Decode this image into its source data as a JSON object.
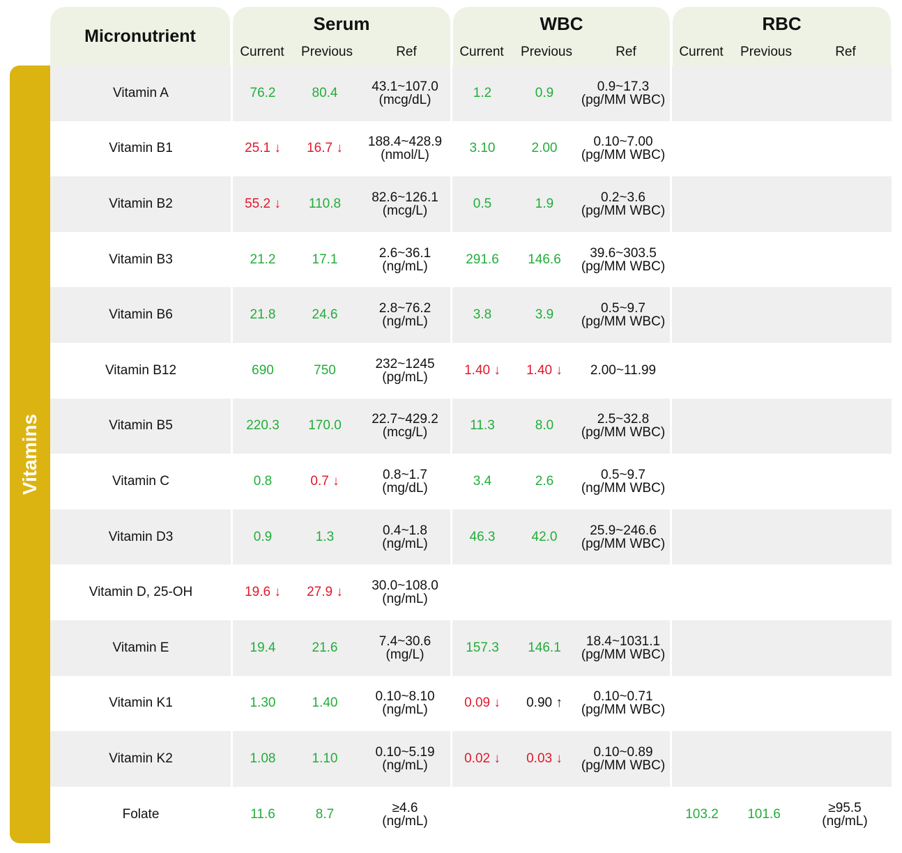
{
  "header": {
    "micronutrient": "Micronutrient",
    "groups": [
      "Serum",
      "WBC",
      "RBC"
    ],
    "sub": {
      "current": "Current",
      "previous": "Previous",
      "ref": "Ref"
    }
  },
  "category": "Vitamins",
  "colors": {
    "band": "#dbb412",
    "good": "#22ad3a",
    "bad": "#e0192b",
    "shade": "#efefef",
    "header_bg": "#eef2e4"
  },
  "rows": [
    {
      "name": "Vitamin A",
      "serum": {
        "current": {
          "v": "76.2",
          "s": "good"
        },
        "previous": {
          "v": "80.4",
          "s": "good"
        },
        "ref": [
          "43.1~107.0",
          "(mcg/dL)"
        ]
      },
      "wbc": {
        "current": {
          "v": "1.2",
          "s": "good"
        },
        "previous": {
          "v": "0.9",
          "s": "good"
        },
        "ref": [
          "0.9~17.3",
          "(pg/MM WBC)"
        ]
      }
    },
    {
      "name": "Vitamin B1",
      "serum": {
        "current": {
          "v": "25.1 ↓",
          "s": "bad"
        },
        "previous": {
          "v": "16.7 ↓",
          "s": "bad"
        },
        "ref": [
          "188.4~428.9",
          "(nmol/L)"
        ]
      },
      "wbc": {
        "current": {
          "v": "3.10",
          "s": "good"
        },
        "previous": {
          "v": "2.00",
          "s": "good"
        },
        "ref": [
          "0.10~7.00",
          "(pg/MM WBC)"
        ]
      }
    },
    {
      "name": "Vitamin B2",
      "serum": {
        "current": {
          "v": "55.2 ↓",
          "s": "bad"
        },
        "previous": {
          "v": "110.8",
          "s": "good"
        },
        "ref": [
          "82.6~126.1",
          "(mcg/L)"
        ]
      },
      "wbc": {
        "current": {
          "v": "0.5",
          "s": "good"
        },
        "previous": {
          "v": "1.9",
          "s": "good"
        },
        "ref": [
          "0.2~3.6",
          "(pg/MM WBC)"
        ]
      }
    },
    {
      "name": "Vitamin B3",
      "serum": {
        "current": {
          "v": "21.2",
          "s": "good"
        },
        "previous": {
          "v": "17.1",
          "s": "good"
        },
        "ref": [
          "2.6~36.1",
          "(ng/mL)"
        ]
      },
      "wbc": {
        "current": {
          "v": "291.6",
          "s": "good"
        },
        "previous": {
          "v": "146.6",
          "s": "good"
        },
        "ref": [
          "39.6~303.5",
          "(pg/MM WBC)"
        ]
      }
    },
    {
      "name": "Vitamin B6",
      "serum": {
        "current": {
          "v": "21.8",
          "s": "good"
        },
        "previous": {
          "v": "24.6",
          "s": "good"
        },
        "ref": [
          "2.8~76.2",
          "(ng/mL)"
        ]
      },
      "wbc": {
        "current": {
          "v": "3.8",
          "s": "good"
        },
        "previous": {
          "v": "3.9",
          "s": "good"
        },
        "ref": [
          "0.5~9.7",
          "(pg/MM WBC)"
        ]
      }
    },
    {
      "name": "Vitamin B12",
      "serum": {
        "current": {
          "v": "690",
          "s": "good"
        },
        "previous": {
          "v": "750",
          "s": "good"
        },
        "ref": [
          "232~1245",
          "(pg/mL)"
        ]
      },
      "wbc": {
        "current": {
          "v": "1.40 ↓",
          "s": "bad"
        },
        "previous": {
          "v": "1.40 ↓",
          "s": "bad"
        },
        "ref": [
          "2.00~11.99"
        ]
      }
    },
    {
      "name": "Vitamin B5",
      "serum": {
        "current": {
          "v": "220.3",
          "s": "good"
        },
        "previous": {
          "v": "170.0",
          "s": "good"
        },
        "ref": [
          "22.7~429.2",
          "(mcg/L)"
        ]
      },
      "wbc": {
        "current": {
          "v": "11.3",
          "s": "good"
        },
        "previous": {
          "v": "8.0",
          "s": "good"
        },
        "ref": [
          "2.5~32.8",
          "(pg/MM WBC)"
        ]
      }
    },
    {
      "name": "Vitamin C",
      "serum": {
        "current": {
          "v": "0.8",
          "s": "good"
        },
        "previous": {
          "v": "0.7 ↓",
          "s": "bad"
        },
        "ref": [
          "0.8~1.7",
          "(mg/dL)"
        ]
      },
      "wbc": {
        "current": {
          "v": "3.4",
          "s": "good"
        },
        "previous": {
          "v": "2.6",
          "s": "good"
        },
        "ref": [
          "0.5~9.7",
          "(ng/MM WBC)"
        ]
      }
    },
    {
      "name": "Vitamin D3",
      "serum": {
        "current": {
          "v": "0.9",
          "s": "good"
        },
        "previous": {
          "v": "1.3",
          "s": "good"
        },
        "ref": [
          "0.4~1.8",
          "(ng/mL)"
        ]
      },
      "wbc": {
        "current": {
          "v": "46.3",
          "s": "good"
        },
        "previous": {
          "v": "42.0",
          "s": "good"
        },
        "ref": [
          "25.9~246.6",
          "(pg/MM WBC)"
        ]
      }
    },
    {
      "name": "Vitamin D, 25-OH",
      "serum": {
        "current": {
          "v": "19.6 ↓",
          "s": "bad"
        },
        "previous": {
          "v": "27.9 ↓",
          "s": "bad"
        },
        "ref": [
          "30.0~108.0",
          "(ng/mL)"
        ]
      }
    },
    {
      "name": "Vitamin E",
      "serum": {
        "current": {
          "v": "19.4",
          "s": "good"
        },
        "previous": {
          "v": "21.6",
          "s": "good"
        },
        "ref": [
          "7.4~30.6",
          "(mg/L)"
        ]
      },
      "wbc": {
        "current": {
          "v": "157.3",
          "s": "good"
        },
        "previous": {
          "v": "146.1",
          "s": "good"
        },
        "ref": [
          "18.4~1031.1",
          "(pg/MM WBC)"
        ]
      }
    },
    {
      "name": "Vitamin K1",
      "serum": {
        "current": {
          "v": "1.30",
          "s": "good"
        },
        "previous": {
          "v": "1.40",
          "s": "good"
        },
        "ref": [
          "0.10~8.10",
          "(ng/mL)"
        ]
      },
      "wbc": {
        "current": {
          "v": "0.09 ↓",
          "s": "bad"
        },
        "previous": {
          "v": "0.90 ↑",
          "s": "neutral"
        },
        "ref": [
          "0.10~0.71",
          "(pg/MM WBC)"
        ]
      }
    },
    {
      "name": "Vitamin K2",
      "serum": {
        "current": {
          "v": "1.08",
          "s": "good"
        },
        "previous": {
          "v": "1.10",
          "s": "good"
        },
        "ref": [
          "0.10~5.19",
          "(ng/mL)"
        ]
      },
      "wbc": {
        "current": {
          "v": "0.02 ↓",
          "s": "bad"
        },
        "previous": {
          "v": "0.03 ↓",
          "s": "bad"
        },
        "ref": [
          "0.10~0.89",
          "(pg/MM WBC)"
        ]
      }
    },
    {
      "name": "Folate",
      "serum": {
        "current": {
          "v": "11.6",
          "s": "good"
        },
        "previous": {
          "v": "8.7",
          "s": "good"
        },
        "ref": [
          "≥4.6",
          "(ng/mL)"
        ]
      },
      "rbc": {
        "current": {
          "v": "103.2",
          "s": "good"
        },
        "previous": {
          "v": "101.6",
          "s": "good"
        },
        "ref": [
          "≥95.5",
          "(ng/mL)"
        ]
      }
    }
  ]
}
